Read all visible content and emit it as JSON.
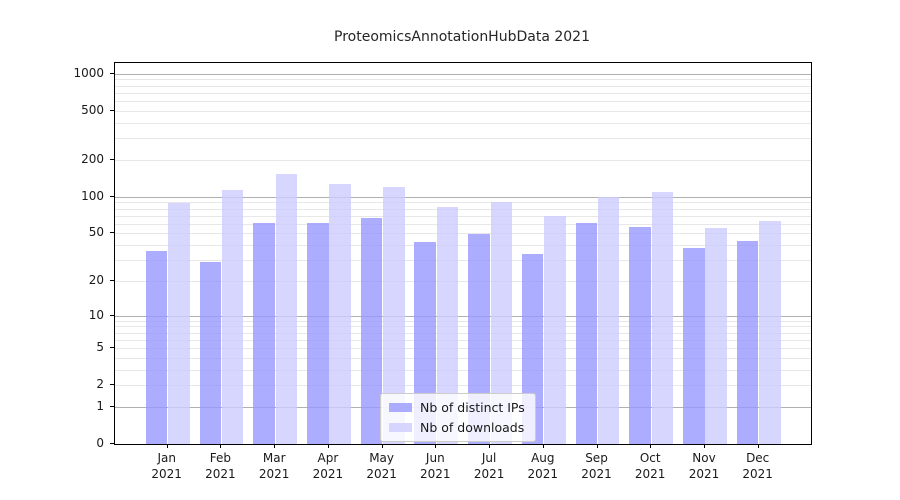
{
  "title": "ProteomicsAnnotationHubData 2021",
  "year_label": "2021",
  "chart_data": {
    "type": "bar",
    "title": "ProteomicsAnnotationHubData 2021",
    "categories": [
      "Jan 2021",
      "Feb 2021",
      "Mar 2021",
      "Apr 2021",
      "May 2021",
      "Jun 2021",
      "Jul 2021",
      "Aug 2021",
      "Sep 2021",
      "Oct 2021",
      "Nov 2021",
      "Dec 2021"
    ],
    "months": [
      "Jan",
      "Feb",
      "Mar",
      "Apr",
      "May",
      "Jun",
      "Jul",
      "Aug",
      "Sep",
      "Oct",
      "Nov",
      "Dec"
    ],
    "series": [
      {
        "name": "Nb of distinct IPs",
        "color": "#9999ff",
        "values": [
          36,
          29,
          61,
          61,
          67,
          42,
          49,
          34,
          61,
          56,
          38,
          43
        ]
      },
      {
        "name": "Nb of downloads",
        "color": "#ccccff",
        "values": [
          89,
          114,
          153,
          127,
          119,
          82,
          90,
          69,
          99,
          110,
          55,
          63
        ]
      }
    ],
    "xlabel": "",
    "ylabel": "",
    "yscale": "log10(1+x)",
    "yticks": [
      0,
      1,
      2,
      5,
      10,
      20,
      50,
      100,
      200,
      500,
      1000
    ],
    "ylim": [
      0,
      1250
    ],
    "grid": true,
    "legend_position": "lower center",
    "colors": {
      "major_grid": "#b0b0b0",
      "minor_grid": "#e7e7e7",
      "axis": "#000000",
      "text": "#1a1a1a"
    },
    "bar_alpha": 0.8
  }
}
